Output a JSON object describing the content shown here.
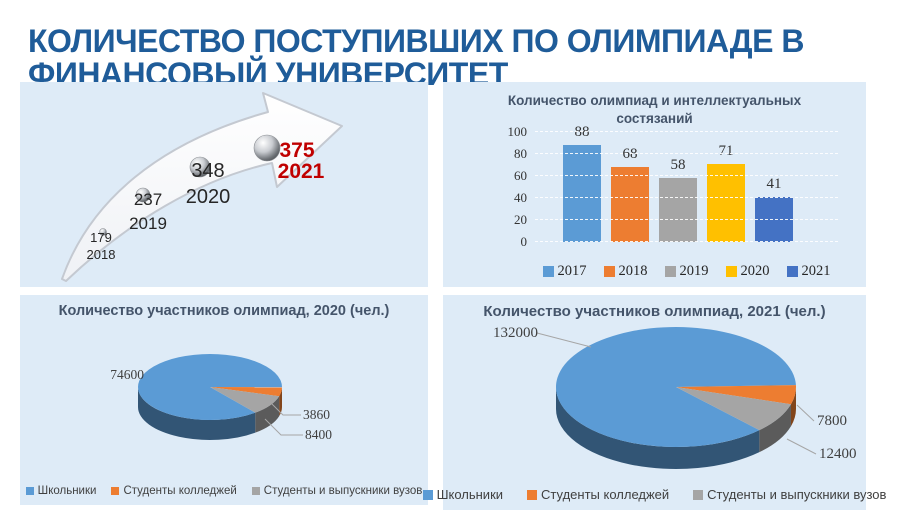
{
  "page": {
    "title_line1": "КОЛИЧЕСТВО ПОСТУПИВШИХ ПО ОЛИМПИАДЕ В",
    "title_line2": "ФИНАНСОВЫЙ УНИВЕРСИТЕТ",
    "title_color": "#1F5C99",
    "panel_background": "#DEEBF7"
  },
  "chart_data": [
    {
      "id": "admitted_by_olympiad_trend",
      "type": "line",
      "style": "arrow-growth-infographic",
      "x": [
        "2018",
        "2019",
        "2020",
        "2021"
      ],
      "values": [
        179,
        237,
        348,
        375
      ],
      "label_color": "#262626",
      "highlight_index": 3,
      "highlight_color": "#C00000"
    },
    {
      "id": "olympiad_count",
      "type": "bar",
      "title": "Количество олимпиад и интеллектуальных состязаний",
      "categories": [
        "2017",
        "2018",
        "2019",
        "2020",
        "2021"
      ],
      "values": [
        88,
        68,
        58,
        71,
        41
      ],
      "colors": [
        "#5B9BD5",
        "#ED7D31",
        "#A5A5A5",
        "#FFC000",
        "#4472C4"
      ],
      "ylim": [
        0,
        100
      ],
      "yticks": [
        0,
        20,
        40,
        60,
        80,
        100
      ],
      "grid": true,
      "legend_position": "bottom"
    },
    {
      "id": "participants_2020",
      "type": "pie",
      "title": "Количество участников олимпиад, 2020 (чел.)",
      "labels": [
        "Школьники",
        "Студенты колледжей",
        "Студенты и выпускники вузов"
      ],
      "values": [
        74600,
        3860,
        8400
      ],
      "value_labels": [
        "74600",
        "3860",
        "8400"
      ],
      "colors": [
        "#5B9BD5",
        "#ED7D31",
        "#A5A5A5"
      ],
      "start_angle": 141,
      "effect": "3d",
      "legend_position": "bottom"
    },
    {
      "id": "participants_2021",
      "type": "pie",
      "title": "Количество участников олимпиад, 2021 (чел.)",
      "labels": [
        "Школьники",
        "Студенты колледжей",
        "Студенты и выпускники вузов"
      ],
      "values": [
        132000,
        7800,
        12400
      ],
      "value_labels": [
        "132000",
        "7800",
        "12400"
      ],
      "colors": [
        "#5B9BD5",
        "#ED7D31",
        "#A5A5A5"
      ],
      "start_angle": 136,
      "effect": "3d",
      "legend_position": "bottom"
    }
  ]
}
